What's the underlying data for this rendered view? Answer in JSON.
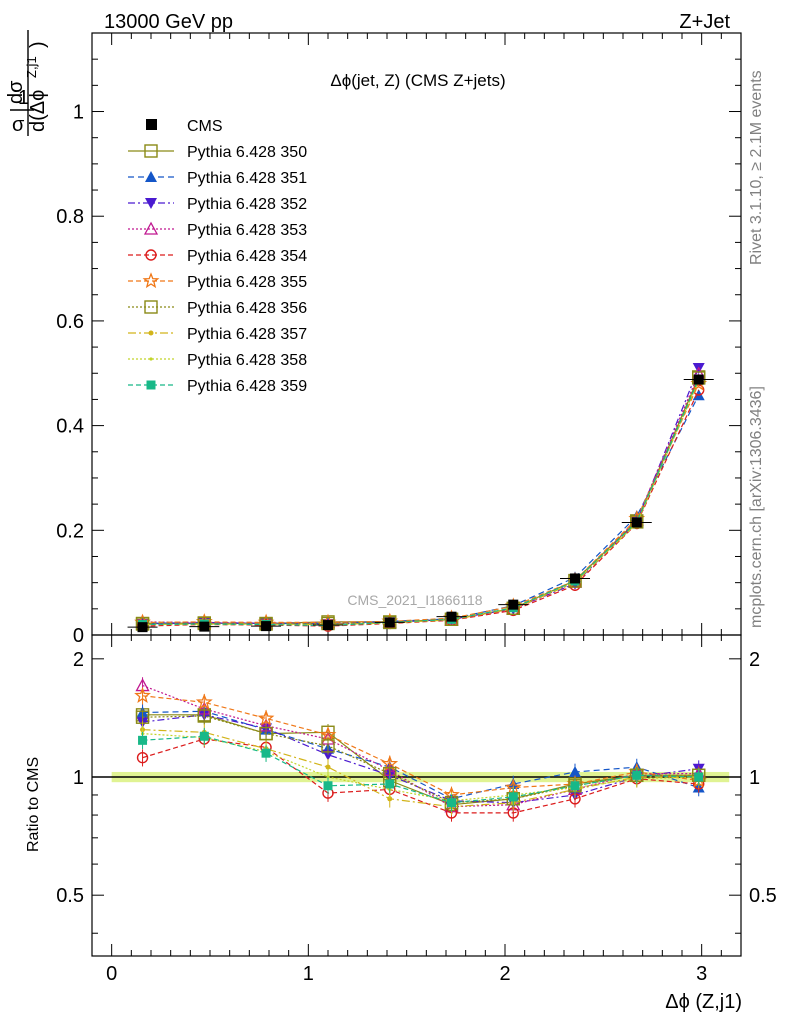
{
  "header": {
    "left": "13000 GeV pp",
    "right": "Z+Jet"
  },
  "side": {
    "rivet": "Rivet 3.1.10, ≥ 2.1M events",
    "mcplots": "mcplots.cern.ch [arXiv:1306.3436]"
  },
  "watermark": "CMS_2021_I1866118",
  "chart_data": {
    "type": "scatter",
    "title": "Δϕ(jet, Z) (CMS Z+jets)",
    "xlabel": "Δϕ (Z,j1)",
    "ylabel_main": "1/σ dσ/d(Δϕ^{Z,j1})",
    "ylabel_ratio": "Ratio to CMS",
    "xlim": [
      -0.1,
      3.2
    ],
    "ylim_main": [
      0,
      1.15
    ],
    "ylim_ratio": [
      0.35,
      2.3
    ],
    "ratio_log": true,
    "x_ticks": [
      0,
      1,
      2,
      3
    ],
    "y_ticks_main": [
      0,
      0.2,
      0.4,
      0.6,
      0.8,
      1
    ],
    "y_ticks_ratio": [
      0.5,
      1,
      2
    ],
    "x": [
      0.157,
      0.471,
      0.785,
      1.1,
      1.414,
      1.728,
      2.042,
      2.356,
      2.67,
      2.985
    ],
    "cms": {
      "name": "CMS",
      "values": [
        0.015,
        0.016,
        0.017,
        0.019,
        0.024,
        0.035,
        0.058,
        0.108,
        0.215,
        0.488
      ],
      "ratio_band": [
        0.97,
        1.03
      ]
    },
    "series": [
      {
        "name": "Pythia 6.428 350",
        "color": "#8a8a16",
        "marker": "square-open",
        "dash": "",
        "values": [
          0.022,
          0.023,
          0.022,
          0.025,
          0.025,
          0.03,
          0.051,
          0.104,
          0.218,
          0.493
        ],
        "ratio": [
          1.44,
          1.44,
          1.29,
          1.3,
          0.98,
          0.85,
          0.88,
          0.96,
          1.01,
          1.01
        ]
      },
      {
        "name": "Pythia 6.428 351",
        "color": "#1456c8",
        "marker": "triangle-up",
        "dash": "6,4",
        "values": [
          0.022,
          0.024,
          0.022,
          0.022,
          0.026,
          0.031,
          0.056,
          0.11,
          0.227,
          0.458
        ],
        "ratio": [
          1.46,
          1.47,
          1.32,
          1.18,
          1.06,
          0.88,
          0.96,
          1.03,
          1.06,
          0.94
        ]
      },
      {
        "name": "Pythia 6.428 352",
        "color": "#4a1ad0",
        "marker": "triangle-down",
        "dash": "7,3,2,3",
        "values": [
          0.021,
          0.023,
          0.022,
          0.021,
          0.024,
          0.03,
          0.05,
          0.098,
          0.216,
          0.51
        ],
        "ratio": [
          1.38,
          1.44,
          1.33,
          1.14,
          1.01,
          0.87,
          0.86,
          0.9,
          1.0,
          1.05
        ]
      },
      {
        "name": "Pythia 6.428 353",
        "color": "#c01890",
        "marker": "triangle-open",
        "dash": "2,2",
        "values": [
          0.025,
          0.024,
          0.023,
          0.024,
          0.025,
          0.029,
          0.049,
          0.101,
          0.22,
          0.499
        ],
        "ratio": [
          1.71,
          1.49,
          1.35,
          1.25,
          1.04,
          0.84,
          0.85,
          0.93,
          1.02,
          1.02
        ]
      },
      {
        "name": "Pythia 6.428 354",
        "color": "#dc1c1c",
        "marker": "circle-open",
        "dash": "5,3",
        "values": [
          0.017,
          0.02,
          0.019,
          0.017,
          0.022,
          0.028,
          0.047,
          0.095,
          0.213,
          0.468
        ],
        "ratio": [
          1.12,
          1.25,
          1.19,
          0.91,
          0.93,
          0.81,
          0.81,
          0.88,
          0.99,
          0.96
        ]
      },
      {
        "name": "Pythia 6.428 355",
        "color": "#f07818",
        "marker": "star-open",
        "dash": "5,3",
        "values": [
          0.024,
          0.025,
          0.024,
          0.024,
          0.026,
          0.032,
          0.055,
          0.104,
          0.222,
          0.48
        ],
        "ratio": [
          1.61,
          1.55,
          1.41,
          1.28,
          1.08,
          0.9,
          0.94,
          0.96,
          1.03,
          0.98
        ]
      },
      {
        "name": "Pythia 6.428 356",
        "color": "#8a8a16",
        "marker": "square-open",
        "dash": "2,2",
        "values": [
          0.021,
          0.022,
          0.021,
          0.022,
          0.024,
          0.03,
          0.051,
          0.103,
          0.216,
          0.491
        ],
        "ratio": [
          1.42,
          1.43,
          1.29,
          1.2,
          1.02,
          0.86,
          0.88,
          0.95,
          1.01,
          1.01
        ]
      },
      {
        "name": "Pythia 6.428 357",
        "color": "#d2b41a",
        "marker": "dot",
        "dash": "8,3,2,3",
        "values": [
          0.02,
          0.021,
          0.021,
          0.02,
          0.023,
          0.029,
          0.05,
          0.1,
          0.214,
          0.487
        ],
        "ratio": [
          1.32,
          1.3,
          1.18,
          1.06,
          0.88,
          0.84,
          0.86,
          0.93,
          1.0,
          1.0
        ]
      },
      {
        "name": "Pythia 6.428 358",
        "color": "#c2d42a",
        "marker": "dot-small",
        "dash": "2,2",
        "values": [
          0.02,
          0.02,
          0.02,
          0.019,
          0.023,
          0.03,
          0.052,
          0.102,
          0.213,
          0.486
        ],
        "ratio": [
          1.29,
          1.26,
          1.16,
          1.0,
          0.93,
          0.87,
          0.9,
          0.94,
          0.99,
          1.0
        ]
      },
      {
        "name": "Pythia 6.428 359",
        "color": "#18b888",
        "marker": "square-filled",
        "dash": "5,3",
        "values": [
          0.02,
          0.021,
          0.02,
          0.018,
          0.024,
          0.03,
          0.052,
          0.103,
          0.216,
          0.489
        ],
        "ratio": [
          1.24,
          1.27,
          1.15,
          0.95,
          0.96,
          0.86,
          0.89,
          0.95,
          1.01,
          1.0
        ]
      }
    ]
  }
}
